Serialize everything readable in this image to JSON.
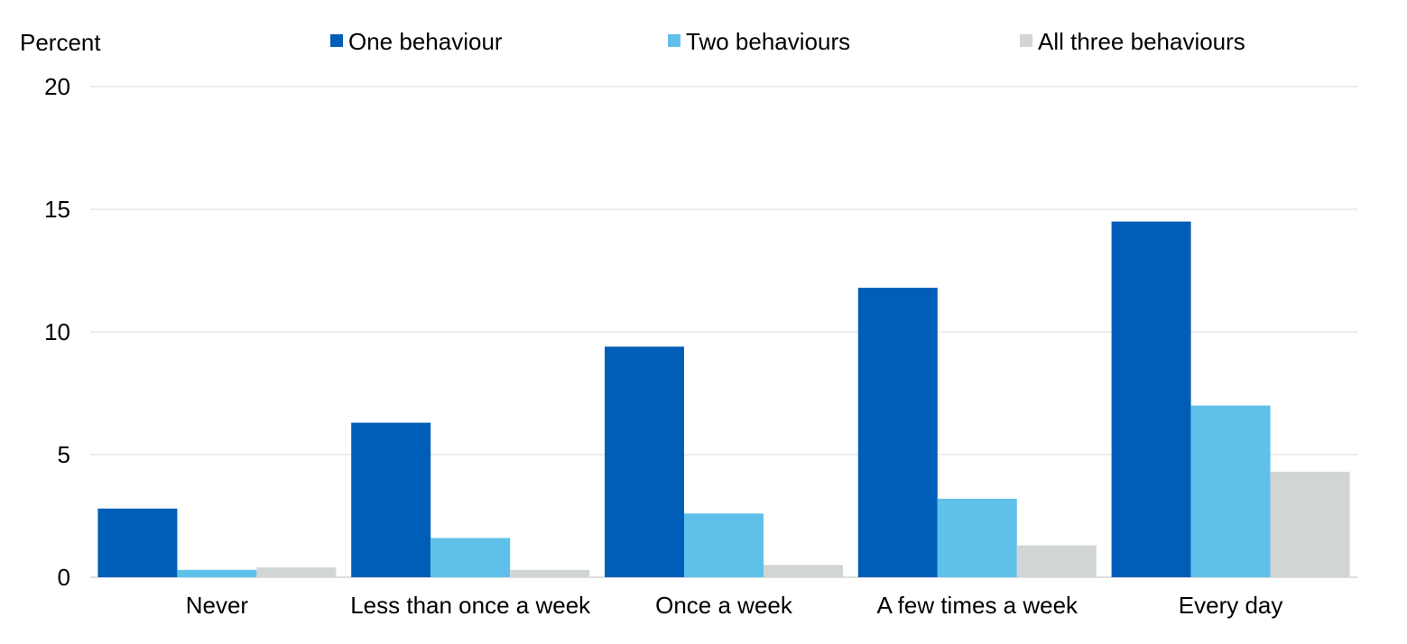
{
  "chart_data": {
    "type": "bar",
    "title": "",
    "xlabel": "",
    "ylabel": "Percent",
    "ylim": [
      0,
      20
    ],
    "yticks": [
      0,
      5,
      10,
      15,
      20
    ],
    "grid": true,
    "legend_position": "top",
    "categories": [
      "Never",
      "Less than once a week",
      "Once a week",
      "A few times a week",
      "Every day"
    ],
    "series": [
      {
        "name": "One behaviour",
        "color": "#005EB8",
        "values": [
          2.8,
          6.3,
          9.4,
          11.8,
          14.5
        ]
      },
      {
        "name": "Two behaviours",
        "color": "#5FC1EA",
        "values": [
          0.3,
          1.6,
          2.6,
          3.2,
          7.0
        ]
      },
      {
        "name": "All three behaviours",
        "color": "#D1D5D5",
        "values": [
          0.4,
          0.3,
          0.5,
          1.3,
          4.3
        ]
      }
    ]
  }
}
